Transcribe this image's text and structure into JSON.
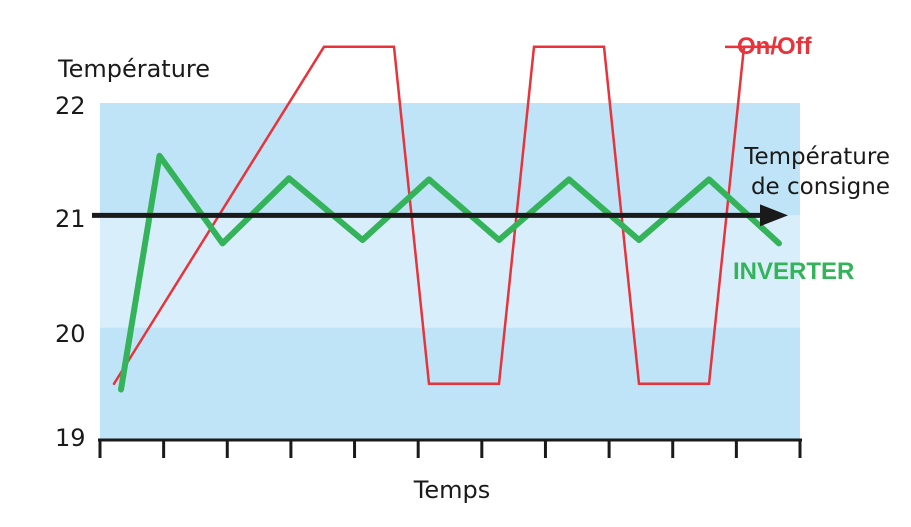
{
  "chart_data": {
    "type": "line",
    "ylabel": "Température",
    "xlabel": "Temps",
    "ylim": [
      19,
      22
    ],
    "yticks": [
      "19",
      "20",
      "21",
      "22"
    ],
    "x_tick_count": 12,
    "setpoint": {
      "value": 21,
      "label_line1": "Température",
      "label_line2": "de consigne",
      "color": "#1a1a1a"
    },
    "bands": [
      {
        "from": 21,
        "to": 22,
        "color": "#bfe3f7"
      },
      {
        "from": 20,
        "to": 21,
        "color": "#d9eefb"
      },
      {
        "from": 19,
        "to": 20,
        "color": "#bfe3f7"
      }
    ],
    "series": [
      {
        "name": "On/Off",
        "color": "#e8333b",
        "points": [
          [
            0.2,
            19.5
          ],
          [
            3.2,
            22.5
          ],
          [
            4.2,
            22.5
          ],
          [
            4.7,
            19.5
          ],
          [
            5.7,
            19.5
          ],
          [
            6.2,
            22.5
          ],
          [
            7.2,
            22.5
          ],
          [
            7.7,
            19.5
          ],
          [
            8.7,
            19.5
          ],
          [
            9.2,
            22.5
          ],
          [
            9.7,
            22.5
          ]
        ]
      },
      {
        "name": "INVERTER",
        "color": "#34b35a",
        "points": [
          [
            0.3,
            19.45
          ],
          [
            0.85,
            21.53
          ],
          [
            1.75,
            20.75
          ],
          [
            2.7,
            21.33
          ],
          [
            3.75,
            20.78
          ],
          [
            4.7,
            21.32
          ],
          [
            5.7,
            20.78
          ],
          [
            6.7,
            21.32
          ],
          [
            7.7,
            20.78
          ],
          [
            8.7,
            21.32
          ],
          [
            9.7,
            20.75
          ]
        ]
      }
    ]
  }
}
